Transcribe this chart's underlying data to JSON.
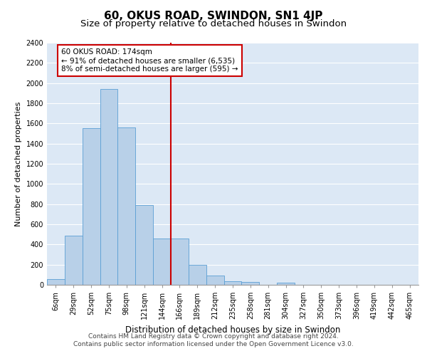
{
  "title": "60, OKUS ROAD, SWINDON, SN1 4JP",
  "subtitle": "Size of property relative to detached houses in Swindon",
  "xlabel": "Distribution of detached houses by size in Swindon",
  "ylabel": "Number of detached properties",
  "categories": [
    "6sqm",
    "29sqm",
    "52sqm",
    "75sqm",
    "98sqm",
    "121sqm",
    "144sqm",
    "166sqm",
    "189sqm",
    "212sqm",
    "235sqm",
    "258sqm",
    "281sqm",
    "304sqm",
    "327sqm",
    "350sqm",
    "373sqm",
    "396sqm",
    "419sqm",
    "442sqm",
    "465sqm"
  ],
  "values": [
    60,
    490,
    1550,
    1940,
    1560,
    790,
    460,
    460,
    195,
    90,
    35,
    30,
    0,
    20,
    0,
    0,
    0,
    0,
    0,
    0,
    0
  ],
  "bar_color": "#b8d0e8",
  "bar_edge_color": "#5a9fd4",
  "property_label": "60 OKUS ROAD: 174sqm",
  "annotation_line1": "← 91% of detached houses are smaller (6,535)",
  "annotation_line2": "8% of semi-detached houses are larger (595) →",
  "vline_position": 6.5,
  "vline_color": "#cc0000",
  "annotation_box_color": "#cc0000",
  "ylim": [
    0,
    2400
  ],
  "yticks": [
    0,
    200,
    400,
    600,
    800,
    1000,
    1200,
    1400,
    1600,
    1800,
    2000,
    2200,
    2400
  ],
  "background_color": "#dce8f5",
  "grid_color": "#ffffff",
  "footer_line1": "Contains HM Land Registry data © Crown copyright and database right 2024.",
  "footer_line2": "Contains public sector information licensed under the Open Government Licence v3.0.",
  "title_fontsize": 11,
  "subtitle_fontsize": 9.5,
  "ylabel_fontsize": 8,
  "xlabel_fontsize": 8.5,
  "tick_fontsize": 7,
  "annotation_fontsize": 7.5,
  "footer_fontsize": 6.5
}
